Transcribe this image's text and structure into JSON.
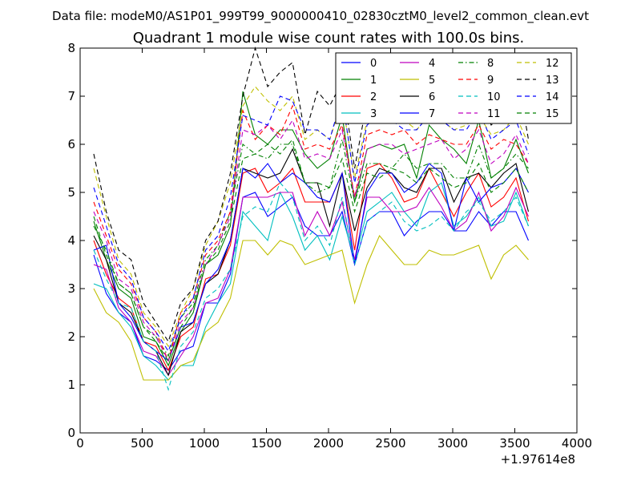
{
  "chart_data": {
    "type": "line",
    "supertitle": "Data file: modeM0/AS1P01_999T99_9000000410_02830cztM0_level2_common_clean.evt",
    "title": "Quadrant 1 module wise count rates with 100.0s bins.",
    "xlabel": "",
    "ylabel": "",
    "x_offset_label": "+1.97614e8",
    "xlim": [
      0,
      4000
    ],
    "ylim": [
      0,
      8
    ],
    "x_ticks": [
      0,
      500,
      1000,
      1500,
      2000,
      2500,
      3000,
      3500,
      4000
    ],
    "y_ticks": [
      0,
      1,
      2,
      3,
      4,
      5,
      6,
      7,
      8
    ],
    "x_tick_labels": [
      "0",
      "500",
      "1000",
      "1500",
      "2000",
      "2500",
      "3000",
      "3500",
      "4000"
    ],
    "y_tick_labels": [
      "0",
      "1",
      "2",
      "3",
      "4",
      "5",
      "6",
      "7",
      "8"
    ],
    "legend_position": "top-right",
    "x": [
      110,
      210,
      310,
      410,
      510,
      610,
      710,
      810,
      910,
      1010,
      1110,
      1210,
      1310,
      1410,
      1510,
      1610,
      1710,
      1810,
      1910,
      2010,
      2110,
      2210,
      2310,
      2410,
      2510,
      2610,
      2710,
      2810,
      2910,
      3010,
      3110,
      3210,
      3310,
      3410,
      3510,
      3610
    ],
    "series": [
      {
        "name": "0",
        "color": "#0000ff",
        "dash": "solid",
        "values": [
          3.7,
          2.9,
          2.5,
          2.3,
          1.6,
          1.5,
          1.3,
          1.7,
          1.8,
          2.7,
          2.7,
          3.3,
          4.9,
          5.0,
          4.5,
          4.7,
          4.9,
          4.3,
          4.1,
          4.1,
          4.6,
          3.5,
          4.4,
          4.6,
          4.6,
          4.1,
          4.4,
          4.6,
          4.6,
          4.2,
          4.2,
          4.6,
          4.3,
          4.6,
          4.6,
          4.0
        ]
      },
      {
        "name": "1",
        "color": "#008000",
        "dash": "solid",
        "values": [
          4.4,
          3.6,
          3.0,
          2.8,
          2.0,
          1.9,
          1.4,
          2.1,
          2.5,
          3.5,
          3.7,
          4.3,
          7.1,
          6.2,
          6.0,
          6.3,
          6.3,
          5.8,
          5.5,
          5.7,
          6.6,
          4.8,
          5.9,
          6.0,
          5.9,
          6.0,
          5.3,
          6.4,
          6.1,
          5.9,
          5.6,
          6.5,
          5.3,
          5.5,
          6.1,
          5.4
        ]
      },
      {
        "name": "2",
        "color": "#ff0000",
        "dash": "solid",
        "values": [
          4.0,
          3.3,
          2.8,
          2.6,
          1.9,
          1.8,
          1.3,
          2.0,
          2.2,
          3.2,
          3.3,
          3.9,
          5.4,
          5.5,
          5.0,
          5.2,
          5.5,
          4.8,
          4.8,
          4.8,
          5.4,
          3.8,
          5.5,
          5.6,
          5.3,
          4.8,
          4.9,
          5.5,
          5.0,
          4.5,
          5.0,
          5.4,
          4.7,
          4.9,
          5.3,
          4.4
        ]
      },
      {
        "name": "3",
        "color": "#00bfbf",
        "dash": "solid",
        "values": [
          3.1,
          3.0,
          2.5,
          2.2,
          1.6,
          1.4,
          1.1,
          1.4,
          1.4,
          2.2,
          2.7,
          3.1,
          4.6,
          4.3,
          4.0,
          5.0,
          4.5,
          3.8,
          4.1,
          3.6,
          4.5,
          3.6,
          4.6,
          4.8,
          5.0,
          4.6,
          4.3,
          5.0,
          5.2,
          4.3,
          4.5,
          4.9,
          4.3,
          4.4,
          5.0,
          4.3
        ]
      },
      {
        "name": "4",
        "color": "#bf00bf",
        "dash": "solid",
        "values": [
          3.5,
          3.4,
          2.6,
          2.3,
          1.7,
          1.6,
          1.2,
          1.6,
          2.0,
          2.7,
          2.8,
          3.4,
          4.9,
          4.9,
          4.9,
          5.0,
          5.0,
          4.1,
          4.6,
          4.1,
          4.8,
          3.6,
          4.9,
          4.9,
          4.6,
          4.6,
          4.7,
          5.1,
          4.7,
          4.2,
          4.4,
          5.0,
          4.2,
          4.5,
          5.1,
          4.5
        ]
      },
      {
        "name": "5",
        "color": "#bfbf00",
        "dash": "solid",
        "values": [
          3.0,
          2.5,
          2.3,
          1.9,
          1.1,
          1.1,
          1.1,
          1.4,
          1.5,
          2.1,
          2.3,
          2.8,
          4.0,
          4.0,
          3.7,
          4.0,
          3.9,
          3.5,
          3.6,
          3.7,
          3.8,
          2.7,
          3.5,
          4.1,
          3.8,
          3.5,
          3.5,
          3.8,
          3.7,
          3.7,
          3.8,
          3.9,
          3.2,
          3.7,
          3.9,
          3.6
        ]
      },
      {
        "name": "6",
        "color": "#000000",
        "dash": "solid",
        "values": [
          4.1,
          3.6,
          2.7,
          2.5,
          1.9,
          1.7,
          1.2,
          2.1,
          2.3,
          3.1,
          3.3,
          4.0,
          5.5,
          5.4,
          5.3,
          5.4,
          5.9,
          5.2,
          5.2,
          4.3,
          5.4,
          4.2,
          5.1,
          5.5,
          5.4,
          5.1,
          5.0,
          5.5,
          5.5,
          4.8,
          5.3,
          5.4,
          5.1,
          5.4,
          5.6,
          4.6
        ]
      },
      {
        "name": "7",
        "color": "#0000ff",
        "dash": "solid",
        "values": [
          3.8,
          3.9,
          2.7,
          2.4,
          1.9,
          1.7,
          1.5,
          2.2,
          2.3,
          3.1,
          3.4,
          4.0,
          5.5,
          5.3,
          5.6,
          5.2,
          5.4,
          5.2,
          4.9,
          4.8,
          5.4,
          3.5,
          5.0,
          5.4,
          5.4,
          5.0,
          5.2,
          5.6,
          5.4,
          4.2,
          5.3,
          4.8,
          5.1,
          5.2,
          5.5,
          5.0
        ]
      },
      {
        "name": "8",
        "color": "#008000",
        "dash": "dashdot",
        "values": [
          4.3,
          3.8,
          3.1,
          2.9,
          2.2,
          2.0,
          1.6,
          2.4,
          2.7,
          3.6,
          3.9,
          4.6,
          6.0,
          5.8,
          5.7,
          6.0,
          6.0,
          5.2,
          5.0,
          5.1,
          6.1,
          4.8,
          5.6,
          5.6,
          5.5,
          5.8,
          5.5,
          5.6,
          5.6,
          5.3,
          5.3,
          6.0,
          5.3,
          5.5,
          5.8,
          5.5
        ]
      },
      {
        "name": "9",
        "color": "#ff0000",
        "dash": "dashed",
        "values": [
          4.8,
          4.1,
          3.4,
          3.1,
          2.4,
          2.1,
          1.5,
          2.5,
          2.8,
          3.7,
          4.0,
          4.6,
          6.7,
          6.1,
          6.4,
          6.2,
          6.8,
          5.9,
          6.0,
          5.9,
          6.4,
          4.9,
          6.2,
          6.3,
          6.2,
          6.3,
          6.0,
          6.2,
          6.1,
          6.0,
          6.0,
          6.4,
          5.9,
          6.1,
          6.0,
          5.6
        ]
      },
      {
        "name": "10",
        "color": "#00bfbf",
        "dash": "dashed",
        "values": [
          3.8,
          3.2,
          2.7,
          2.6,
          1.9,
          1.7,
          0.9,
          1.8,
          2.1,
          2.8,
          3.0,
          3.4,
          4.5,
          4.7,
          4.6,
          5.2,
          4.9,
          4.0,
          4.3,
          3.9,
          4.9,
          3.5,
          4.4,
          4.6,
          4.8,
          4.4,
          4.2,
          4.3,
          4.5,
          4.2,
          4.6,
          4.8,
          4.4,
          4.6,
          4.9,
          4.3
        ]
      },
      {
        "name": "11",
        "color": "#bf00bf",
        "dash": "dashed",
        "values": [
          4.6,
          4.0,
          3.2,
          3.0,
          2.3,
          2.0,
          1.5,
          2.3,
          2.6,
          3.5,
          3.9,
          4.5,
          6.3,
          6.2,
          6.4,
          6.1,
          6.5,
          5.7,
          5.8,
          5.7,
          6.3,
          4.9,
          5.9,
          6.0,
          6.0,
          5.8,
          5.9,
          6.0,
          6.1,
          5.7,
          5.9,
          6.3,
          5.6,
          5.8,
          6.2,
          5.6
        ]
      },
      {
        "name": "12",
        "color": "#bfbf00",
        "dash": "dashed",
        "values": [
          5.5,
          4.5,
          3.6,
          3.3,
          2.5,
          2.2,
          1.8,
          2.5,
          3.0,
          3.9,
          4.4,
          5.2,
          6.8,
          7.2,
          6.9,
          6.7,
          7.0,
          6.1,
          6.3,
          6.1,
          6.9,
          5.3,
          6.5,
          6.6,
          6.6,
          6.5,
          6.3,
          6.6,
          6.5,
          6.3,
          6.4,
          6.6,
          6.2,
          6.3,
          6.6,
          6.0
        ]
      },
      {
        "name": "13",
        "color": "#000000",
        "dash": "dashed",
        "values": [
          5.8,
          4.6,
          3.8,
          3.6,
          2.7,
          2.3,
          1.9,
          2.7,
          3.0,
          4.0,
          4.4,
          5.4,
          7.0,
          8.0,
          7.2,
          7.5,
          7.7,
          6.2,
          7.1,
          6.8,
          7.3,
          5.5,
          6.9,
          6.7,
          7.0,
          6.8,
          6.6,
          7.1,
          6.8,
          6.6,
          6.8,
          7.0,
          6.4,
          6.6,
          7.6,
          6.1
        ]
      },
      {
        "name": "14",
        "color": "#0000ff",
        "dash": "dashed",
        "values": [
          5.1,
          4.3,
          3.5,
          3.2,
          2.4,
          2.1,
          1.7,
          2.4,
          2.8,
          3.8,
          4.1,
          4.9,
          6.6,
          6.5,
          6.4,
          7.0,
          6.9,
          6.3,
          6.3,
          6.1,
          7.0,
          5.2,
          6.4,
          6.6,
          6.5,
          6.3,
          6.3,
          6.6,
          6.5,
          6.3,
          6.3,
          6.7,
          6.1,
          6.3,
          6.5,
          5.8
        ]
      },
      {
        "name": "15",
        "color": "#008000",
        "dash": "dashed",
        "values": [
          4.5,
          3.7,
          3.1,
          2.9,
          2.2,
          1.9,
          1.5,
          2.2,
          2.6,
          3.5,
          3.8,
          4.4,
          5.7,
          5.8,
          6.0,
          5.8,
          6.1,
          5.2,
          5.2,
          5.1,
          5.7,
          4.6,
          5.4,
          5.3,
          5.5,
          5.4,
          5.2,
          5.5,
          5.3,
          5.1,
          5.2,
          5.6,
          5.0,
          5.2,
          5.5,
          5.0
        ]
      }
    ]
  }
}
